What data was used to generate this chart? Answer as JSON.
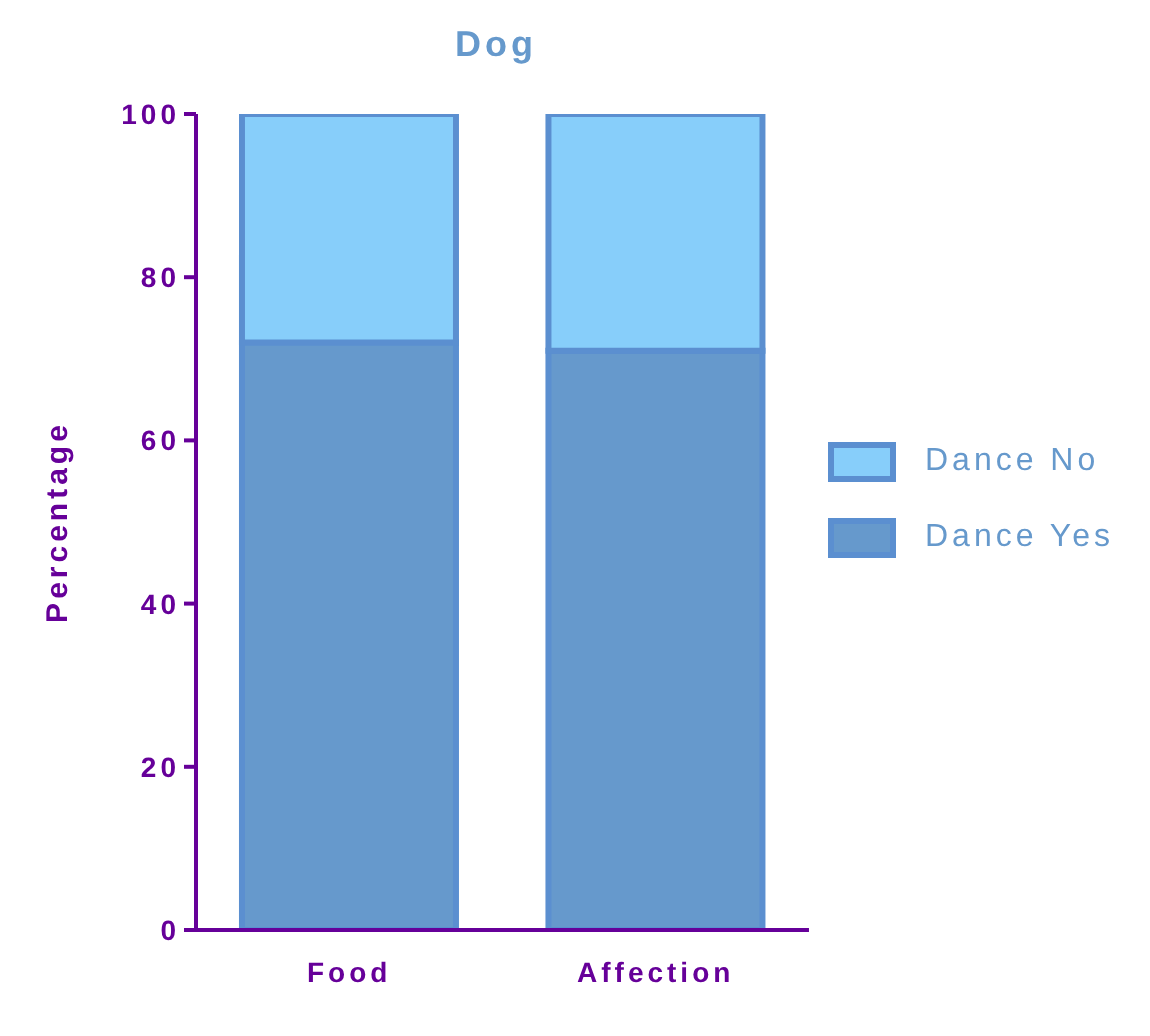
{
  "chart_data": {
    "type": "bar",
    "title": "Dog",
    "ylabel": "Percentage",
    "categories": [
      "Food",
      "Affection"
    ],
    "stacked": true,
    "series": [
      {
        "name": "Dance Yes",
        "color": "#6699cc",
        "values": [
          72,
          71
        ]
      },
      {
        "name": "Dance No",
        "color": "#87cefa",
        "values": [
          28,
          29
        ]
      }
    ],
    "ylim": [
      0,
      100
    ],
    "yticks": [
      0,
      20,
      40,
      60,
      80,
      100
    ],
    "grid": false,
    "legend": "right"
  }
}
